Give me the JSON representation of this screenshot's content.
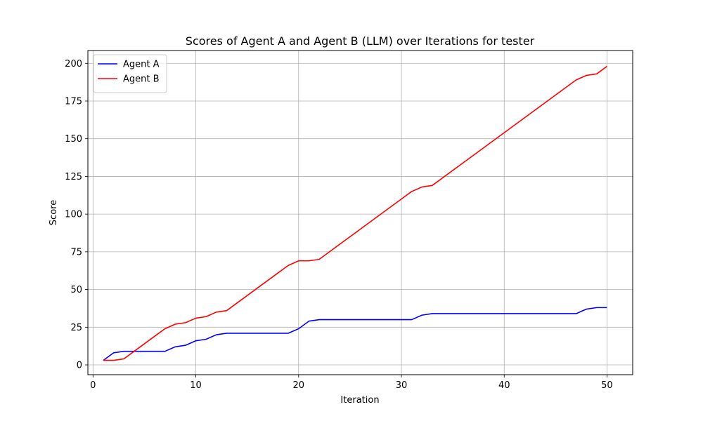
{
  "chart_data": {
    "type": "line",
    "title": "Scores of Agent A and Agent B (LLM) over Iterations for tester",
    "xlabel": "Iteration",
    "ylabel": "Score",
    "xlim": [
      -0.5,
      52.5
    ],
    "ylim": [
      -6.5,
      208.5
    ],
    "xticks": [
      0,
      10,
      20,
      30,
      40,
      50
    ],
    "yticks": [
      0,
      25,
      50,
      75,
      100,
      125,
      150,
      175,
      200
    ],
    "grid": true,
    "legend_position": "top-left",
    "x": [
      1,
      2,
      3,
      4,
      5,
      6,
      7,
      8,
      9,
      10,
      11,
      12,
      13,
      14,
      15,
      16,
      17,
      18,
      19,
      20,
      21,
      22,
      23,
      24,
      25,
      26,
      27,
      28,
      29,
      30,
      31,
      32,
      33,
      34,
      35,
      36,
      37,
      38,
      39,
      40,
      41,
      42,
      43,
      44,
      45,
      46,
      47,
      48,
      49,
      50
    ],
    "series": [
      {
        "name": "Agent A",
        "color": "#0000ff",
        "values": [
          3,
          8,
          9,
          9,
          9,
          9,
          9,
          12,
          13,
          16,
          17,
          20,
          21,
          21,
          21,
          21,
          21,
          21,
          21,
          24,
          29,
          30,
          30,
          30,
          30,
          30,
          30,
          30,
          30,
          30,
          30,
          33,
          34,
          34,
          34,
          34,
          34,
          34,
          34,
          34,
          34,
          34,
          34,
          34,
          34,
          34,
          34,
          37,
          38,
          38
        ]
      },
      {
        "name": "Agent B",
        "color": "#ff0000",
        "values": [
          3,
          3,
          4,
          9,
          14,
          19,
          24,
          27,
          28,
          31,
          32,
          35,
          36,
          41,
          46,
          51,
          56,
          61,
          66,
          69,
          69,
          70,
          75,
          80,
          85,
          90,
          95,
          100,
          105,
          110,
          115,
          118,
          119,
          124,
          129,
          134,
          139,
          144,
          149,
          154,
          159,
          164,
          169,
          174,
          179,
          184,
          189,
          192,
          193,
          198
        ]
      }
    ]
  }
}
